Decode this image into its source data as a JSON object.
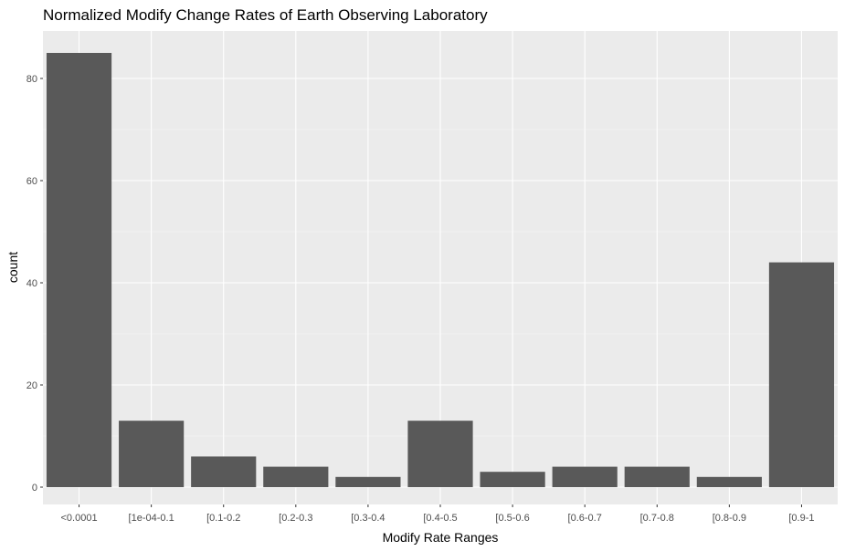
{
  "colors": {
    "panel_background": "#EBEBEB",
    "grid_major": "#FFFFFF",
    "grid_minor": "#F5F5F5",
    "bar_fill": "#595959",
    "tick_label": "#4D4D4D",
    "tick_mark": "#333333"
  },
  "chart_data": {
    "type": "bar",
    "title": "Normalized Modify Change Rates of Earth Observing Laboratory",
    "xlabel": "Modify Rate Ranges",
    "ylabel": "count",
    "categories": [
      "<0.0001",
      "[1e-04-0.1",
      "[0.1-0.2",
      "[0.2-0.3",
      "[0.3-0.4",
      "[0.4-0.5",
      "[0.5-0.6",
      "[0.6-0.7",
      "[0.7-0.8",
      "[0.8-0.9",
      "[0.9-1"
    ],
    "values": [
      85,
      13,
      6,
      4,
      2,
      13,
      3,
      4,
      4,
      2,
      44
    ],
    "ylim": [
      0,
      89
    ],
    "yticks": [
      0,
      20,
      40,
      60,
      80
    ],
    "grid": true,
    "legend": "none"
  }
}
